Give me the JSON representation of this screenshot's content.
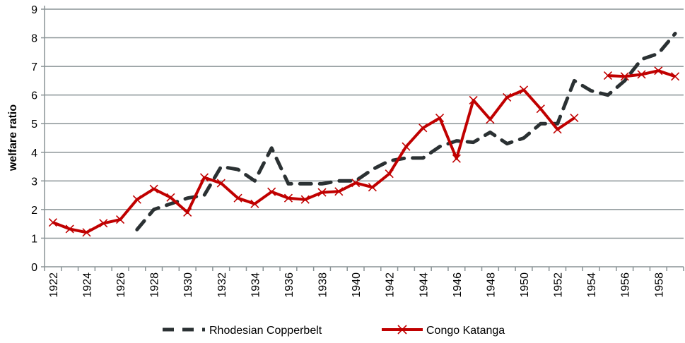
{
  "chart_data": {
    "type": "line",
    "title": "",
    "xlabel": "",
    "ylabel": "welfare ratio",
    "ylim": [
      0,
      9
    ],
    "yticks": [
      0,
      1,
      2,
      3,
      4,
      5,
      6,
      7,
      8,
      9
    ],
    "grid": true,
    "legend_position": "bottom",
    "x": [
      1922,
      1923,
      1924,
      1925,
      1926,
      1927,
      1928,
      1929,
      1930,
      1931,
      1932,
      1933,
      1934,
      1935,
      1936,
      1937,
      1938,
      1939,
      1940,
      1941,
      1942,
      1943,
      1944,
      1945,
      1946,
      1947,
      1948,
      1949,
      1950,
      1951,
      1952,
      1953,
      1954,
      1955,
      1956,
      1957,
      1958,
      1959
    ],
    "xtick_labels": [
      "1922",
      "1924",
      "1926",
      "1928",
      "1930",
      "1932",
      "1934",
      "1936",
      "1938",
      "1940",
      "1942",
      "1944",
      "1946",
      "1948",
      "1950",
      "1952",
      "1954",
      "1956",
      "1958"
    ],
    "series": [
      {
        "name": "Rhodesian Copperbelt",
        "color": "#2b3133",
        "style": "dashed",
        "values": [
          null,
          null,
          null,
          null,
          null,
          1.3,
          2.0,
          2.2,
          2.4,
          2.5,
          3.5,
          3.4,
          3.0,
          4.15,
          2.9,
          2.9,
          2.9,
          3.0,
          3.0,
          3.4,
          3.7,
          3.8,
          3.8,
          4.2,
          4.4,
          4.35,
          4.7,
          4.3,
          4.5,
          5.0,
          5.0,
          6.5,
          6.15,
          6.0,
          6.5,
          7.25,
          7.45,
          8.15
        ]
      },
      {
        "name": "Congo Katanga",
        "color": "#c00000",
        "style": "solid-x",
        "values": [
          1.55,
          1.32,
          1.2,
          1.52,
          1.65,
          2.35,
          2.72,
          2.42,
          1.9,
          3.12,
          2.92,
          2.4,
          2.2,
          2.62,
          2.4,
          2.35,
          2.6,
          2.63,
          2.93,
          2.78,
          3.25,
          4.2,
          4.85,
          5.2,
          3.78,
          5.82,
          5.15,
          5.92,
          6.18,
          5.52,
          4.8,
          5.2,
          null,
          6.68,
          6.65,
          6.72,
          6.85,
          6.65
        ]
      }
    ]
  }
}
